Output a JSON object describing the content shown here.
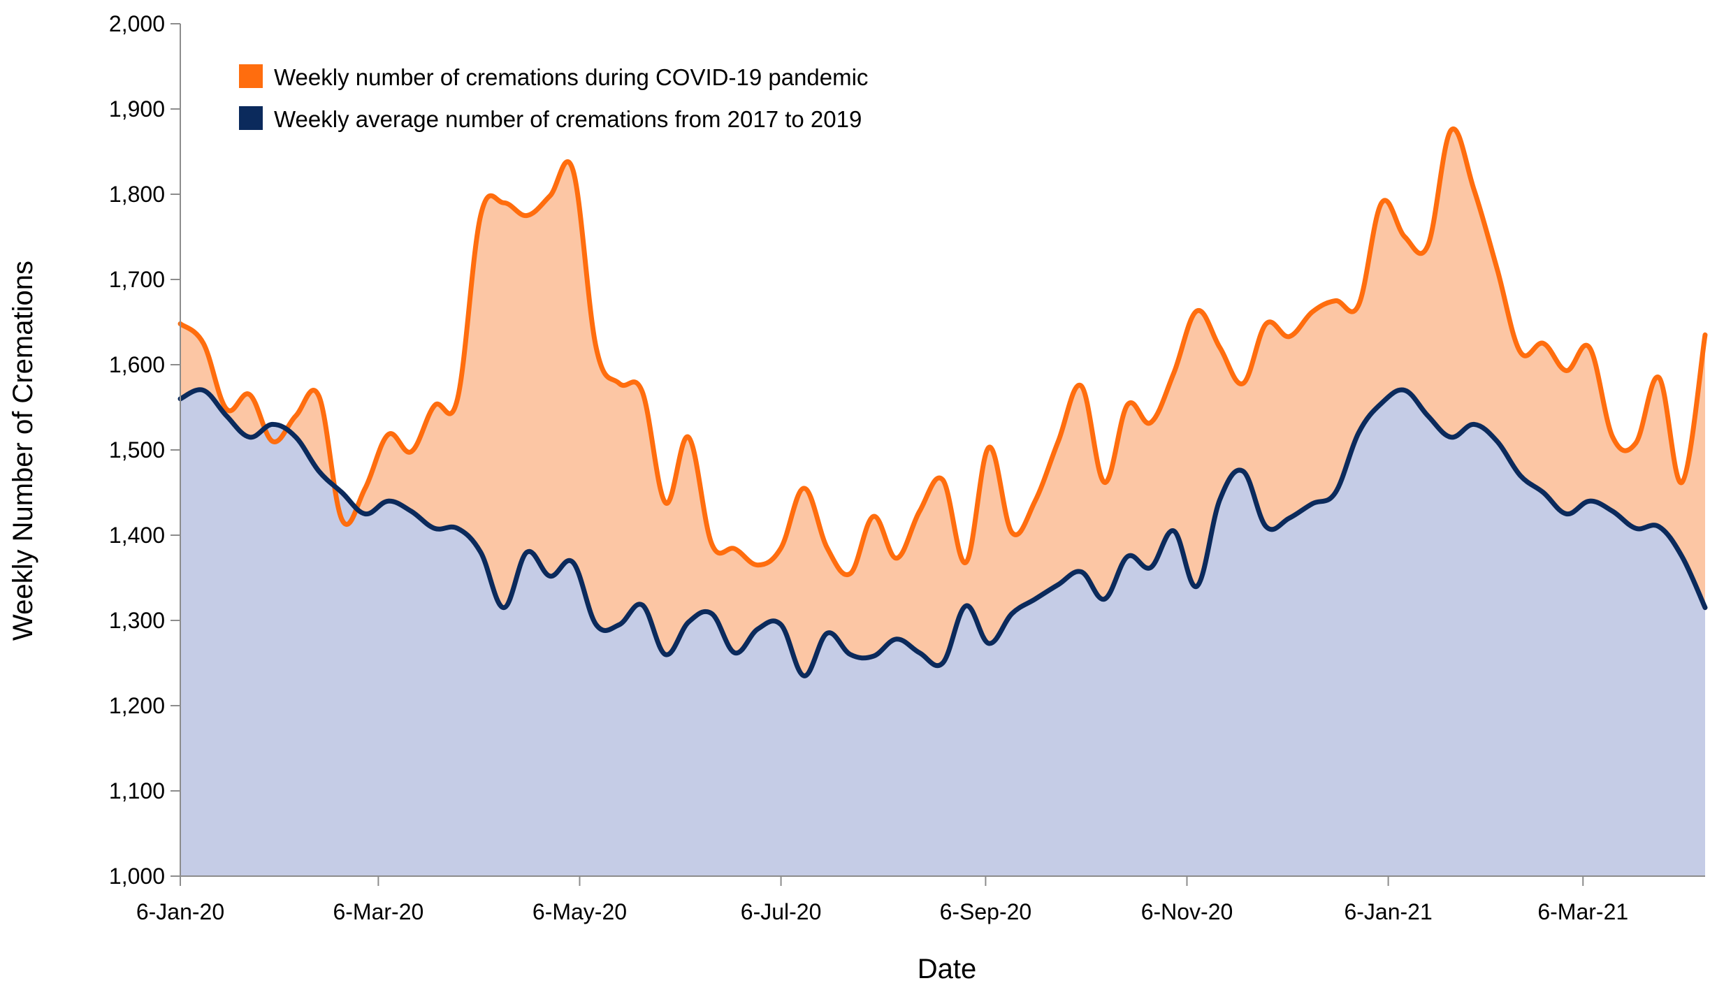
{
  "chart_data": {
    "type": "area",
    "title": "",
    "xlabel": "Date",
    "ylabel": "Weekly Number of Cremations",
    "x_axis_type": "date",
    "x_range": [
      "2020-01-06",
      "2021-04-12"
    ],
    "x_tick_labels": [
      "6-Jan-20",
      "6-Mar-20",
      "6-May-20",
      "6-Jul-20",
      "6-Sep-20",
      "6-Nov-20",
      "6-Jan-21",
      "6-Mar-21"
    ],
    "x_tick_dates": [
      "2020-01-06",
      "2020-03-06",
      "2020-05-06",
      "2020-07-06",
      "2020-09-06",
      "2020-11-06",
      "2021-01-06",
      "2021-03-06"
    ],
    "ylim": [
      1000,
      2000
    ],
    "y_tick_labels": [
      "1,000",
      "1,100",
      "1,200",
      "1,300",
      "1,400",
      "1,500",
      "1,600",
      "1,700",
      "1,800",
      "1,900",
      "2,000"
    ],
    "y_tick_values": [
      1000,
      1100,
      1200,
      1300,
      1400,
      1500,
      1600,
      1700,
      1800,
      1900,
      2000
    ],
    "grid": false,
    "legend_position": "top-left",
    "series": [
      {
        "name": "Weekly number of cremations during COVID-19 pandemic",
        "color": "#FF6D0E",
        "fill": "#FCC6A4",
        "points": [
          [
            "2020-01-06",
            1648
          ],
          [
            "2020-01-13",
            1625
          ],
          [
            "2020-01-20",
            1548
          ],
          [
            "2020-01-27",
            1565
          ],
          [
            "2020-02-03",
            1510
          ],
          [
            "2020-02-10",
            1540
          ],
          [
            "2020-02-17",
            1563
          ],
          [
            "2020-02-24",
            1418
          ],
          [
            "2020-03-02",
            1455
          ],
          [
            "2020-03-09",
            1518
          ],
          [
            "2020-03-16",
            1498
          ],
          [
            "2020-03-23",
            1552
          ],
          [
            "2020-03-30",
            1560
          ],
          [
            "2020-04-06",
            1775
          ],
          [
            "2020-04-13",
            1790
          ],
          [
            "2020-04-20",
            1775
          ],
          [
            "2020-04-27",
            1798
          ],
          [
            "2020-05-04",
            1828
          ],
          [
            "2020-05-11",
            1620
          ],
          [
            "2020-05-18",
            1578
          ],
          [
            "2020-05-25",
            1568
          ],
          [
            "2020-06-01",
            1438
          ],
          [
            "2020-06-08",
            1515
          ],
          [
            "2020-06-15",
            1390
          ],
          [
            "2020-06-22",
            1384
          ],
          [
            "2020-06-29",
            1365
          ],
          [
            "2020-07-06",
            1385
          ],
          [
            "2020-07-13",
            1455
          ],
          [
            "2020-07-20",
            1385
          ],
          [
            "2020-07-27",
            1355
          ],
          [
            "2020-08-03",
            1422
          ],
          [
            "2020-08-10",
            1373
          ],
          [
            "2020-08-17",
            1428
          ],
          [
            "2020-08-24",
            1465
          ],
          [
            "2020-08-31",
            1368
          ],
          [
            "2020-09-07",
            1503
          ],
          [
            "2020-09-14",
            1403
          ],
          [
            "2020-09-21",
            1440
          ],
          [
            "2020-09-28",
            1510
          ],
          [
            "2020-10-05",
            1575
          ],
          [
            "2020-10-12",
            1462
          ],
          [
            "2020-10-19",
            1553
          ],
          [
            "2020-10-26",
            1532
          ],
          [
            "2020-11-02",
            1590
          ],
          [
            "2020-11-09",
            1663
          ],
          [
            "2020-11-16",
            1620
          ],
          [
            "2020-11-23",
            1578
          ],
          [
            "2020-11-30",
            1648
          ],
          [
            "2020-12-07",
            1633
          ],
          [
            "2020-12-14",
            1662
          ],
          [
            "2020-12-21",
            1675
          ],
          [
            "2020-12-28",
            1670
          ],
          [
            "2021-01-04",
            1790
          ],
          [
            "2021-01-11",
            1750
          ],
          [
            "2021-01-18",
            1740
          ],
          [
            "2021-01-25",
            1875
          ],
          [
            "2021-02-01",
            1805
          ],
          [
            "2021-02-08",
            1712
          ],
          [
            "2021-02-15",
            1615
          ],
          [
            "2021-02-22",
            1625
          ],
          [
            "2021-03-01",
            1593
          ],
          [
            "2021-03-08",
            1620
          ],
          [
            "2021-03-15",
            1515
          ],
          [
            "2021-03-22",
            1508
          ],
          [
            "2021-03-29",
            1585
          ],
          [
            "2021-04-05",
            1462
          ],
          [
            "2021-04-12",
            1635
          ]
        ]
      },
      {
        "name": "Weekly average number of cremations from 2017 to 2019",
        "color": "#0B2A5C",
        "fill": "#C5CCE6",
        "points": [
          [
            "2020-01-06",
            1560
          ],
          [
            "2020-01-13",
            1570
          ],
          [
            "2020-01-20",
            1540
          ],
          [
            "2020-01-27",
            1515
          ],
          [
            "2020-02-03",
            1530
          ],
          [
            "2020-02-10",
            1515
          ],
          [
            "2020-02-17",
            1475
          ],
          [
            "2020-02-24",
            1450
          ],
          [
            "2020-03-02",
            1425
          ],
          [
            "2020-03-09",
            1440
          ],
          [
            "2020-03-16",
            1428
          ],
          [
            "2020-03-23",
            1408
          ],
          [
            "2020-03-30",
            1408
          ],
          [
            "2020-04-06",
            1380
          ],
          [
            "2020-04-13",
            1315
          ],
          [
            "2020-04-20",
            1380
          ],
          [
            "2020-04-27",
            1352
          ],
          [
            "2020-05-04",
            1368
          ],
          [
            "2020-05-11",
            1295
          ],
          [
            "2020-05-18",
            1295
          ],
          [
            "2020-05-25",
            1318
          ],
          [
            "2020-06-01",
            1260
          ],
          [
            "2020-06-08",
            1298
          ],
          [
            "2020-06-15",
            1308
          ],
          [
            "2020-06-22",
            1262
          ],
          [
            "2020-06-29",
            1290
          ],
          [
            "2020-07-06",
            1295
          ],
          [
            "2020-07-13",
            1235
          ],
          [
            "2020-07-20",
            1285
          ],
          [
            "2020-07-27",
            1260
          ],
          [
            "2020-08-03",
            1258
          ],
          [
            "2020-08-10",
            1278
          ],
          [
            "2020-08-17",
            1262
          ],
          [
            "2020-08-24",
            1250
          ],
          [
            "2020-08-31",
            1317
          ],
          [
            "2020-09-07",
            1273
          ],
          [
            "2020-09-14",
            1308
          ],
          [
            "2020-09-21",
            1325
          ],
          [
            "2020-09-28",
            1342
          ],
          [
            "2020-10-05",
            1357
          ],
          [
            "2020-10-12",
            1325
          ],
          [
            "2020-10-19",
            1375
          ],
          [
            "2020-10-26",
            1362
          ],
          [
            "2020-11-02",
            1405
          ],
          [
            "2020-11-09",
            1340
          ],
          [
            "2020-11-16",
            1442
          ],
          [
            "2020-11-23",
            1475
          ],
          [
            "2020-11-30",
            1410
          ],
          [
            "2020-12-07",
            1420
          ],
          [
            "2020-12-14",
            1437
          ],
          [
            "2020-12-21",
            1450
          ],
          [
            "2020-12-28",
            1520
          ],
          [
            "2021-01-04",
            1555
          ],
          [
            "2021-01-11",
            1570
          ],
          [
            "2021-01-18",
            1540
          ],
          [
            "2021-01-25",
            1515
          ],
          [
            "2021-02-01",
            1530
          ],
          [
            "2021-02-08",
            1510
          ],
          [
            "2021-02-15",
            1470
          ],
          [
            "2021-02-22",
            1450
          ],
          [
            "2021-03-01",
            1425
          ],
          [
            "2021-03-08",
            1440
          ],
          [
            "2021-03-15",
            1428
          ],
          [
            "2021-03-22",
            1408
          ],
          [
            "2021-03-29",
            1410
          ],
          [
            "2021-04-05",
            1375
          ],
          [
            "2021-04-12",
            1315
          ]
        ]
      }
    ]
  }
}
